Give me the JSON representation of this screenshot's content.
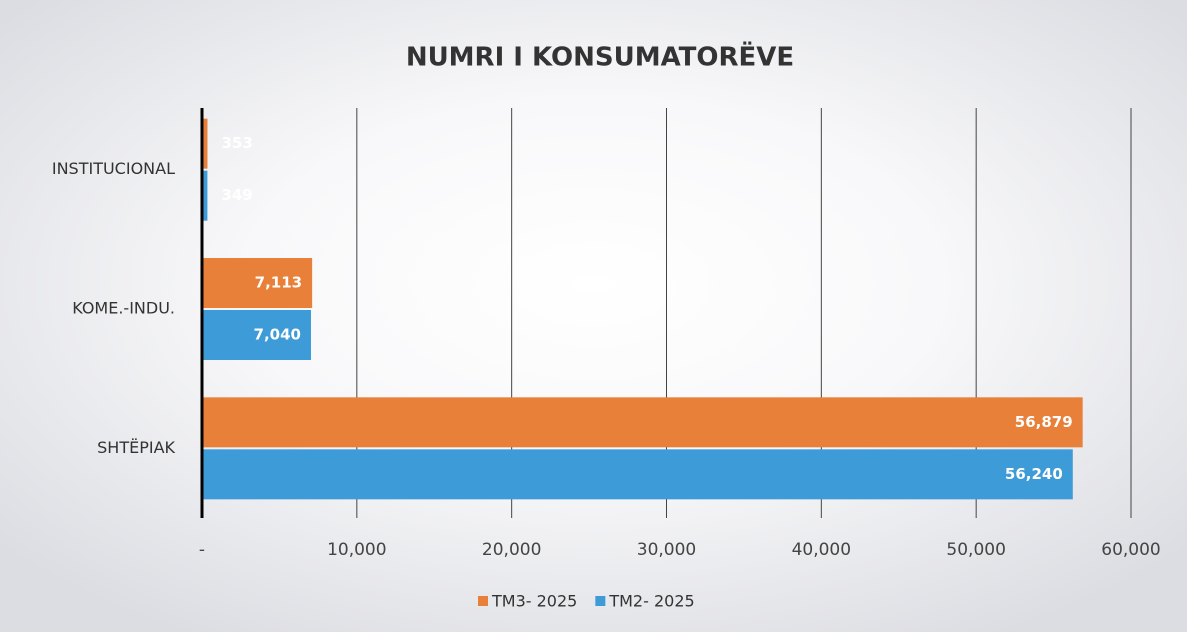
{
  "chart_data": {
    "type": "bar",
    "orientation": "horizontal",
    "title": "NUMRI I KONSUMATORËVE",
    "categories": [
      "INSTITUCIONAL",
      "KOME.-INDU.",
      "SHTËPIAK"
    ],
    "series": [
      {
        "name": "TM3- 2025",
        "color": "#e8803a",
        "values": [
          353,
          7113,
          56879
        ],
        "value_labels": [
          "353",
          "7,113",
          "56,879"
        ]
      },
      {
        "name": "TM2- 2025",
        "color": "#3d9bd8",
        "values": [
          349,
          7040,
          56240
        ],
        "value_labels": [
          "349",
          "7,040",
          "56,240"
        ]
      }
    ],
    "xlim": [
      0,
      60000
    ],
    "xticks": [
      {
        "value": 0,
        "label": "-"
      },
      {
        "value": 10000,
        "label": "10,000"
      },
      {
        "value": 20000,
        "label": "20,000"
      },
      {
        "value": 30000,
        "label": "30,000"
      },
      {
        "value": 40000,
        "label": "40,000"
      },
      {
        "value": 50000,
        "label": "50,000"
      },
      {
        "value": 60000,
        "label": "60,000"
      }
    ],
    "grid": true,
    "legend": "bottom"
  }
}
